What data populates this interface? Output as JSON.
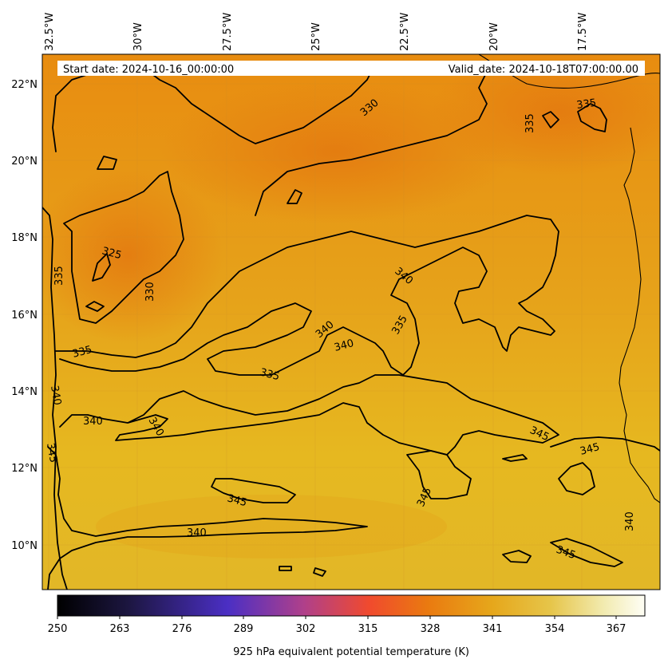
{
  "map": {
    "lat_labels": [
      "22°N",
      "20°N",
      "18°N",
      "16°N",
      "14°N",
      "12°N",
      "10°N"
    ],
    "lon_labels": [
      "32.5°W",
      "30°W",
      "27.5°W",
      "25°W",
      "22.5°W",
      "20°W",
      "17.5°W"
    ],
    "start_date": "Start date: 2024-10-16_00:00:00",
    "valid_date": "Valid_date: 2024-10-18T07:00:00.00",
    "contour_labels": [
      "330",
      "335",
      "325",
      "335",
      "330",
      "340",
      "340",
      "335",
      "335",
      "340",
      "335",
      "340",
      "340",
      "340",
      "345",
      "345",
      "345",
      "345",
      "340",
      "345",
      "345",
      "340",
      "335"
    ]
  },
  "colorbar": {
    "ticks": [
      "250",
      "263",
      "276",
      "289",
      "302",
      "315",
      "328",
      "341",
      "354",
      "367"
    ],
    "label": "925 hPa equivalent potential temperature (K)",
    "range": [
      250,
      373
    ],
    "colors": [
      "#000000",
      "#1c1640",
      "#4b2fc4",
      "#b0408a",
      "#f04a2e",
      "#ea7a10",
      "#e6a71b",
      "#e6c54a",
      "#f2ebb0",
      "#fefef5"
    ]
  }
}
